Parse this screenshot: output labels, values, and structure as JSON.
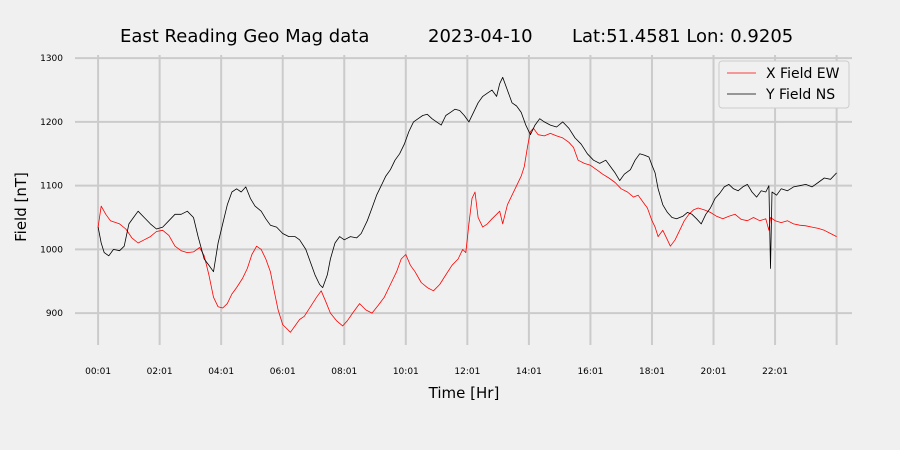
{
  "chart_data": {
    "type": "line",
    "title_parts": [
      "East Reading Geo Mag data",
      "2023-04-10",
      "Lat:51.4581  Lon: 0.9205"
    ],
    "xlabel": "Time  [Hr]",
    "ylabel": "Field  [nT]",
    "x_unit": "hours",
    "xlim": [
      -0.75,
      24.5
    ],
    "ylim": [
      850,
      1305
    ],
    "x_ticks": [
      {
        "value": 0,
        "label": "00:01"
      },
      {
        "value": 2,
        "label": "02:01"
      },
      {
        "value": 4,
        "label": "04:01"
      },
      {
        "value": 6,
        "label": "06:01"
      },
      {
        "value": 8,
        "label": "08:01"
      },
      {
        "value": 10,
        "label": "10:01"
      },
      {
        "value": 12,
        "label": "12:01"
      },
      {
        "value": 14,
        "label": "14:01"
      },
      {
        "value": 16,
        "label": "16:01"
      },
      {
        "value": 18,
        "label": "18:01"
      },
      {
        "value": 20,
        "label": "20:01"
      },
      {
        "value": 22,
        "label": "22:01"
      },
      {
        "value": 24,
        "label": ""
      }
    ],
    "y_ticks": [
      {
        "value": 900,
        "label": "900"
      },
      {
        "value": 1000,
        "label": "1000"
      },
      {
        "value": 1100,
        "label": "1100"
      },
      {
        "value": 1200,
        "label": "1200"
      },
      {
        "value": 1300,
        "label": "1300"
      }
    ],
    "grid": true,
    "legend_position": "top-right",
    "colors": {
      "background": "#f0f0f0",
      "grid": "#cbcbcb"
    },
    "series": [
      {
        "name": "X Field EW",
        "color": "#ff0000",
        "points": [
          [
            0,
            1035
          ],
          [
            0.1,
            1068
          ],
          [
            0.25,
            1055
          ],
          [
            0.4,
            1045
          ],
          [
            0.7,
            1040
          ],
          [
            0.9,
            1032
          ],
          [
            1.1,
            1018
          ],
          [
            1.3,
            1010
          ],
          [
            1.5,
            1015
          ],
          [
            1.7,
            1020
          ],
          [
            1.9,
            1028
          ],
          [
            2.1,
            1030
          ],
          [
            2.3,
            1022
          ],
          [
            2.5,
            1005
          ],
          [
            2.7,
            998
          ],
          [
            2.9,
            995
          ],
          [
            3.1,
            996
          ],
          [
            3.3,
            1003
          ],
          [
            3.45,
            990
          ],
          [
            3.6,
            960
          ],
          [
            3.75,
            925
          ],
          [
            3.9,
            910
          ],
          [
            4.05,
            908
          ],
          [
            4.2,
            915
          ],
          [
            4.35,
            930
          ],
          [
            4.5,
            940
          ],
          [
            4.7,
            955
          ],
          [
            4.85,
            970
          ],
          [
            5.0,
            992
          ],
          [
            5.15,
            1005
          ],
          [
            5.3,
            1000
          ],
          [
            5.45,
            985
          ],
          [
            5.6,
            965
          ],
          [
            5.7,
            940
          ],
          [
            5.85,
            905
          ],
          [
            6.0,
            882
          ],
          [
            6.15,
            875
          ],
          [
            6.25,
            870
          ],
          [
            6.4,
            880
          ],
          [
            6.55,
            890
          ],
          [
            6.7,
            895
          ],
          [
            6.9,
            910
          ],
          [
            7.1,
            925
          ],
          [
            7.25,
            935
          ],
          [
            7.4,
            918
          ],
          [
            7.55,
            900
          ],
          [
            7.75,
            888
          ],
          [
            7.95,
            880
          ],
          [
            8.1,
            888
          ],
          [
            8.3,
            902
          ],
          [
            8.5,
            915
          ],
          [
            8.7,
            905
          ],
          [
            8.9,
            900
          ],
          [
            9.1,
            912
          ],
          [
            9.3,
            925
          ],
          [
            9.5,
            945
          ],
          [
            9.7,
            965
          ],
          [
            9.85,
            985
          ],
          [
            10.0,
            992
          ],
          [
            10.15,
            975
          ],
          [
            10.3,
            965
          ],
          [
            10.5,
            948
          ],
          [
            10.7,
            940
          ],
          [
            10.9,
            935
          ],
          [
            11.1,
            945
          ],
          [
            11.3,
            960
          ],
          [
            11.5,
            975
          ],
          [
            11.7,
            985
          ],
          [
            11.85,
            1000
          ],
          [
            11.95,
            995
          ],
          [
            12.05,
            1040
          ],
          [
            12.15,
            1080
          ],
          [
            12.25,
            1090
          ],
          [
            12.35,
            1050
          ],
          [
            12.5,
            1035
          ],
          [
            12.65,
            1040
          ],
          [
            12.8,
            1048
          ],
          [
            12.95,
            1055
          ],
          [
            13.05,
            1060
          ],
          [
            13.15,
            1040
          ],
          [
            13.3,
            1070
          ],
          [
            13.45,
            1085
          ],
          [
            13.6,
            1100
          ],
          [
            13.75,
            1115
          ],
          [
            13.85,
            1130
          ],
          [
            13.95,
            1160
          ],
          [
            14.05,
            1185
          ],
          [
            14.15,
            1190
          ],
          [
            14.3,
            1180
          ],
          [
            14.5,
            1178
          ],
          [
            14.7,
            1182
          ],
          [
            14.9,
            1178
          ],
          [
            15.1,
            1175
          ],
          [
            15.3,
            1168
          ],
          [
            15.45,
            1160
          ],
          [
            15.6,
            1140
          ],
          [
            15.8,
            1135
          ],
          [
            16.0,
            1132
          ],
          [
            16.2,
            1125
          ],
          [
            16.4,
            1118
          ],
          [
            16.6,
            1112
          ],
          [
            16.8,
            1105
          ],
          [
            17.0,
            1095
          ],
          [
            17.2,
            1090
          ],
          [
            17.4,
            1082
          ],
          [
            17.55,
            1085
          ],
          [
            17.7,
            1075
          ],
          [
            17.85,
            1065
          ],
          [
            18.0,
            1045
          ],
          [
            18.1,
            1035
          ],
          [
            18.2,
            1020
          ],
          [
            18.35,
            1030
          ],
          [
            18.5,
            1015
          ],
          [
            18.6,
            1005
          ],
          [
            18.75,
            1015
          ],
          [
            18.9,
            1030
          ],
          [
            19.05,
            1045
          ],
          [
            19.2,
            1055
          ],
          [
            19.35,
            1062
          ],
          [
            19.5,
            1065
          ],
          [
            19.7,
            1062
          ],
          [
            19.9,
            1058
          ],
          [
            20.1,
            1052
          ],
          [
            20.3,
            1048
          ],
          [
            20.5,
            1052
          ],
          [
            20.7,
            1055
          ],
          [
            20.9,
            1047
          ],
          [
            21.1,
            1045
          ],
          [
            21.3,
            1050
          ],
          [
            21.5,
            1045
          ],
          [
            21.7,
            1048
          ],
          [
            21.8,
            1030
          ],
          [
            21.85,
            1050
          ],
          [
            22.0,
            1045
          ],
          [
            22.2,
            1042
          ],
          [
            22.4,
            1045
          ],
          [
            22.6,
            1040
          ],
          [
            22.8,
            1038
          ],
          [
            23.0,
            1037
          ],
          [
            23.2,
            1035
          ],
          [
            23.4,
            1033
          ],
          [
            23.6,
            1030
          ],
          [
            23.8,
            1025
          ],
          [
            24.0,
            1020
          ]
        ]
      },
      {
        "name": "Y Field NS",
        "color": "#000000",
        "points": [
          [
            0,
            1035
          ],
          [
            0.1,
            1010
          ],
          [
            0.2,
            995
          ],
          [
            0.35,
            990
          ],
          [
            0.5,
            1000
          ],
          [
            0.7,
            998
          ],
          [
            0.85,
            1005
          ],
          [
            1.0,
            1040
          ],
          [
            1.15,
            1050
          ],
          [
            1.3,
            1060
          ],
          [
            1.5,
            1050
          ],
          [
            1.7,
            1040
          ],
          [
            1.9,
            1032
          ],
          [
            2.1,
            1035
          ],
          [
            2.3,
            1045
          ],
          [
            2.5,
            1055
          ],
          [
            2.7,
            1055
          ],
          [
            2.9,
            1060
          ],
          [
            3.1,
            1050
          ],
          [
            3.25,
            1020
          ],
          [
            3.45,
            985
          ],
          [
            3.6,
            975
          ],
          [
            3.75,
            965
          ],
          [
            3.9,
            1010
          ],
          [
            4.05,
            1040
          ],
          [
            4.2,
            1070
          ],
          [
            4.35,
            1090
          ],
          [
            4.5,
            1095
          ],
          [
            4.65,
            1090
          ],
          [
            4.8,
            1098
          ],
          [
            4.95,
            1080
          ],
          [
            5.1,
            1068
          ],
          [
            5.3,
            1060
          ],
          [
            5.45,
            1048
          ],
          [
            5.6,
            1038
          ],
          [
            5.8,
            1035
          ],
          [
            6.0,
            1025
          ],
          [
            6.2,
            1020
          ],
          [
            6.4,
            1020
          ],
          [
            6.55,
            1015
          ],
          [
            6.75,
            1000
          ],
          [
            6.9,
            980
          ],
          [
            7.05,
            960
          ],
          [
            7.2,
            945
          ],
          [
            7.3,
            940
          ],
          [
            7.45,
            960
          ],
          [
            7.55,
            985
          ],
          [
            7.7,
            1010
          ],
          [
            7.85,
            1020
          ],
          [
            8.0,
            1015
          ],
          [
            8.2,
            1020
          ],
          [
            8.4,
            1018
          ],
          [
            8.55,
            1025
          ],
          [
            8.75,
            1045
          ],
          [
            8.9,
            1065
          ],
          [
            9.05,
            1085
          ],
          [
            9.2,
            1100
          ],
          [
            9.35,
            1115
          ],
          [
            9.5,
            1125
          ],
          [
            9.65,
            1140
          ],
          [
            9.8,
            1150
          ],
          [
            9.95,
            1165
          ],
          [
            10.1,
            1185
          ],
          [
            10.25,
            1200
          ],
          [
            10.4,
            1205
          ],
          [
            10.55,
            1210
          ],
          [
            10.7,
            1212
          ],
          [
            10.85,
            1205
          ],
          [
            11.0,
            1200
          ],
          [
            11.15,
            1195
          ],
          [
            11.3,
            1210
          ],
          [
            11.45,
            1215
          ],
          [
            11.6,
            1220
          ],
          [
            11.75,
            1218
          ],
          [
            11.9,
            1210
          ],
          [
            12.05,
            1200
          ],
          [
            12.2,
            1215
          ],
          [
            12.35,
            1230
          ],
          [
            12.5,
            1240
          ],
          [
            12.65,
            1245
          ],
          [
            12.8,
            1250
          ],
          [
            12.95,
            1240
          ],
          [
            13.05,
            1260
          ],
          [
            13.15,
            1270
          ],
          [
            13.3,
            1250
          ],
          [
            13.45,
            1230
          ],
          [
            13.6,
            1225
          ],
          [
            13.75,
            1215
          ],
          [
            13.9,
            1195
          ],
          [
            14.05,
            1180
          ],
          [
            14.2,
            1195
          ],
          [
            14.35,
            1205
          ],
          [
            14.5,
            1200
          ],
          [
            14.7,
            1195
          ],
          [
            14.9,
            1192
          ],
          [
            15.1,
            1200
          ],
          [
            15.3,
            1190
          ],
          [
            15.5,
            1175
          ],
          [
            15.7,
            1165
          ],
          [
            15.9,
            1150
          ],
          [
            16.1,
            1140
          ],
          [
            16.3,
            1135
          ],
          [
            16.5,
            1140
          ],
          [
            16.65,
            1130
          ],
          [
            16.8,
            1120
          ],
          [
            16.95,
            1108
          ],
          [
            17.1,
            1118
          ],
          [
            17.3,
            1125
          ],
          [
            17.45,
            1140
          ],
          [
            17.6,
            1150
          ],
          [
            17.75,
            1148
          ],
          [
            17.9,
            1145
          ],
          [
            18.0,
            1132
          ],
          [
            18.1,
            1120
          ],
          [
            18.2,
            1095
          ],
          [
            18.35,
            1070
          ],
          [
            18.5,
            1058
          ],
          [
            18.65,
            1050
          ],
          [
            18.8,
            1048
          ],
          [
            19.0,
            1052
          ],
          [
            19.15,
            1058
          ],
          [
            19.3,
            1055
          ],
          [
            19.45,
            1048
          ],
          [
            19.6,
            1040
          ],
          [
            19.75,
            1055
          ],
          [
            19.9,
            1065
          ],
          [
            20.05,
            1080
          ],
          [
            20.2,
            1088
          ],
          [
            20.35,
            1098
          ],
          [
            20.5,
            1102
          ],
          [
            20.65,
            1095
          ],
          [
            20.8,
            1092
          ],
          [
            20.95,
            1098
          ],
          [
            21.1,
            1102
          ],
          [
            21.25,
            1090
          ],
          [
            21.4,
            1082
          ],
          [
            21.55,
            1092
          ],
          [
            21.7,
            1090
          ],
          [
            21.8,
            1100
          ],
          [
            21.85,
            970
          ],
          [
            21.9,
            1090
          ],
          [
            22.05,
            1085
          ],
          [
            22.2,
            1095
          ],
          [
            22.4,
            1092
          ],
          [
            22.6,
            1098
          ],
          [
            22.8,
            1100
          ],
          [
            23.0,
            1102
          ],
          [
            23.2,
            1098
          ],
          [
            23.4,
            1105
          ],
          [
            23.6,
            1112
          ],
          [
            23.8,
            1110
          ],
          [
            24.0,
            1120
          ]
        ]
      }
    ]
  }
}
